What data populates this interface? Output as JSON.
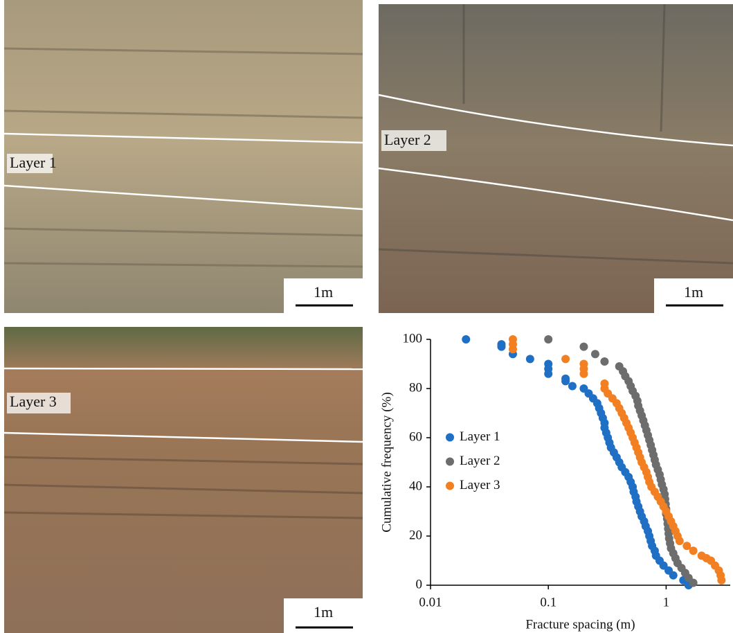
{
  "photos": [
    {
      "label": "Layer 1",
      "scale_bar": "1m"
    },
    {
      "label": "Layer 2",
      "scale_bar": "1m"
    },
    {
      "label": "Layer 3",
      "scale_bar": "1m"
    }
  ],
  "chart_data": {
    "type": "scatter",
    "x_label": "Fracture spacing (m)",
    "y_label": "Cumulative frequency (%)",
    "xscale": "log",
    "xlim": [
      0.01,
      3.5
    ],
    "xticks": [
      0.01,
      0.1,
      1
    ],
    "ylim": [
      0,
      100
    ],
    "yticks": [
      0,
      20,
      40,
      60,
      80,
      100
    ],
    "legend": "center left",
    "series": [
      {
        "name": "Layer 1",
        "color": "#1f6fc5",
        "x": [
          0.02,
          0.04,
          0.04,
          0.05,
          0.07,
          0.1,
          0.1,
          0.1,
          0.14,
          0.14,
          0.16,
          0.2,
          0.22,
          0.24,
          0.26,
          0.27,
          0.28,
          0.29,
          0.3,
          0.3,
          0.31,
          0.32,
          0.33,
          0.34,
          0.36,
          0.38,
          0.4,
          0.42,
          0.45,
          0.48,
          0.5,
          0.52,
          0.53,
          0.55,
          0.56,
          0.58,
          0.6,
          0.62,
          0.65,
          0.67,
          0.7,
          0.72,
          0.74,
          0.76,
          0.8,
          0.82,
          0.88,
          0.95,
          1.05,
          1.15,
          1.4,
          1.55
        ],
        "values": [
          100,
          98,
          97,
          94,
          92,
          90,
          88,
          86,
          84,
          83,
          81,
          80,
          78,
          76,
          74,
          72,
          70,
          68,
          66,
          64,
          62,
          60,
          58,
          56,
          54,
          52,
          50,
          48,
          46,
          44,
          42,
          40,
          38,
          36,
          34,
          32,
          30,
          28,
          26,
          24,
          22,
          20,
          18,
          16,
          14,
          12,
          10,
          8,
          6,
          4,
          2,
          0
        ]
      },
      {
        "name": "Layer 2",
        "color": "#6d6d6d",
        "x": [
          0.1,
          0.2,
          0.25,
          0.3,
          0.4,
          0.43,
          0.45,
          0.48,
          0.5,
          0.52,
          0.55,
          0.57,
          0.58,
          0.6,
          0.62,
          0.64,
          0.66,
          0.68,
          0.7,
          0.72,
          0.74,
          0.76,
          0.78,
          0.8,
          0.82,
          0.85,
          0.88,
          0.9,
          0.92,
          0.95,
          0.97,
          0.98,
          0.99,
          1,
          1,
          1.02,
          1.03,
          1.04,
          1.05,
          1.06,
          1.08,
          1.1,
          1.15,
          1.2,
          1.25,
          1.35,
          1.45,
          1.55,
          1.7
        ],
        "values": [
          100,
          97,
          94,
          91,
          89,
          87,
          85,
          83,
          81,
          79,
          77,
          75,
          73,
          71,
          69,
          67,
          65,
          63,
          61,
          59,
          57,
          55,
          53,
          51,
          49,
          47,
          45,
          43,
          41,
          39,
          37,
          35,
          33,
          31,
          29,
          27,
          25,
          23,
          21,
          19,
          17,
          15,
          13,
          11,
          9,
          7,
          5,
          3,
          1
        ]
      },
      {
        "name": "Layer 3",
        "color": "#f28023",
        "x": [
          0.05,
          0.05,
          0.05,
          0.14,
          0.2,
          0.2,
          0.2,
          0.3,
          0.3,
          0.32,
          0.35,
          0.38,
          0.4,
          0.42,
          0.44,
          0.46,
          0.48,
          0.5,
          0.52,
          0.54,
          0.56,
          0.58,
          0.6,
          0.62,
          0.65,
          0.68,
          0.7,
          0.72,
          0.75,
          0.8,
          0.85,
          0.9,
          0.95,
          1,
          1.05,
          1.1,
          1.15,
          1.2,
          1.25,
          1.3,
          1.5,
          1.7,
          2,
          2.2,
          2.4,
          2.6,
          2.8,
          2.9,
          2.95
        ],
        "values": [
          100,
          98,
          96,
          92,
          90,
          88,
          86,
          82,
          80,
          78,
          76,
          74,
          72,
          70,
          68,
          66,
          64,
          62,
          60,
          58,
          56,
          54,
          52,
          50,
          48,
          46,
          44,
          42,
          40,
          38,
          36,
          34,
          32,
          30,
          28,
          26,
          24,
          22,
          20,
          18,
          16,
          14,
          12,
          11,
          10,
          8,
          6,
          4,
          2
        ]
      }
    ]
  }
}
